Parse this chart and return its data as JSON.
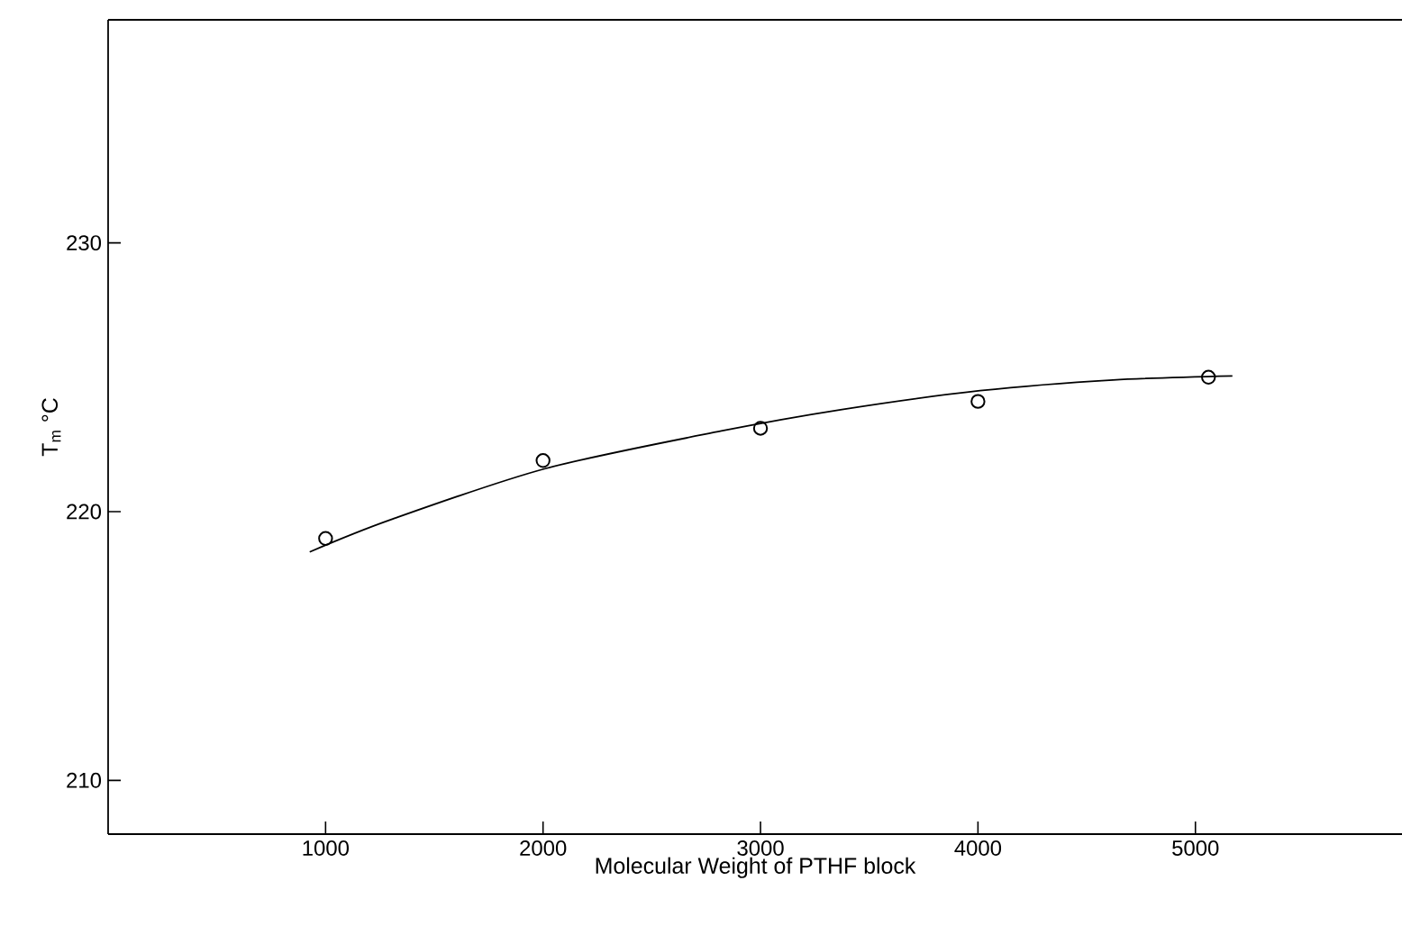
{
  "chart_data": {
    "type": "scatter",
    "xlabel": "Molecular  Weight  of  PTHF  block",
    "ylabel": "T$_{m}$  °C",
    "xlim": [
      0,
      5950
    ],
    "ylim": [
      208,
      238.3
    ],
    "xticks": [
      1000,
      2000,
      3000,
      4000,
      5000
    ],
    "yticks": [
      210,
      220,
      230
    ],
    "grid": false,
    "series": [
      {
        "color": "#000000",
        "marker": "circle",
        "x": [
          1000,
          2000,
          3000,
          4000,
          5060
        ],
        "values": [
          219.0,
          221.9,
          223.1,
          224.1,
          225.0
        ]
      },
      {
        "type": "line",
        "color": "#000000",
        "marker": "none",
        "line_style": "solid",
        "x": [
          927,
          1300,
          2010,
          2820,
          3375,
          4010,
          4620,
          5170
        ],
        "values": [
          218.5,
          219.7,
          221.6,
          223.0,
          223.8,
          224.5,
          224.9,
          225.05
        ]
      }
    ]
  }
}
